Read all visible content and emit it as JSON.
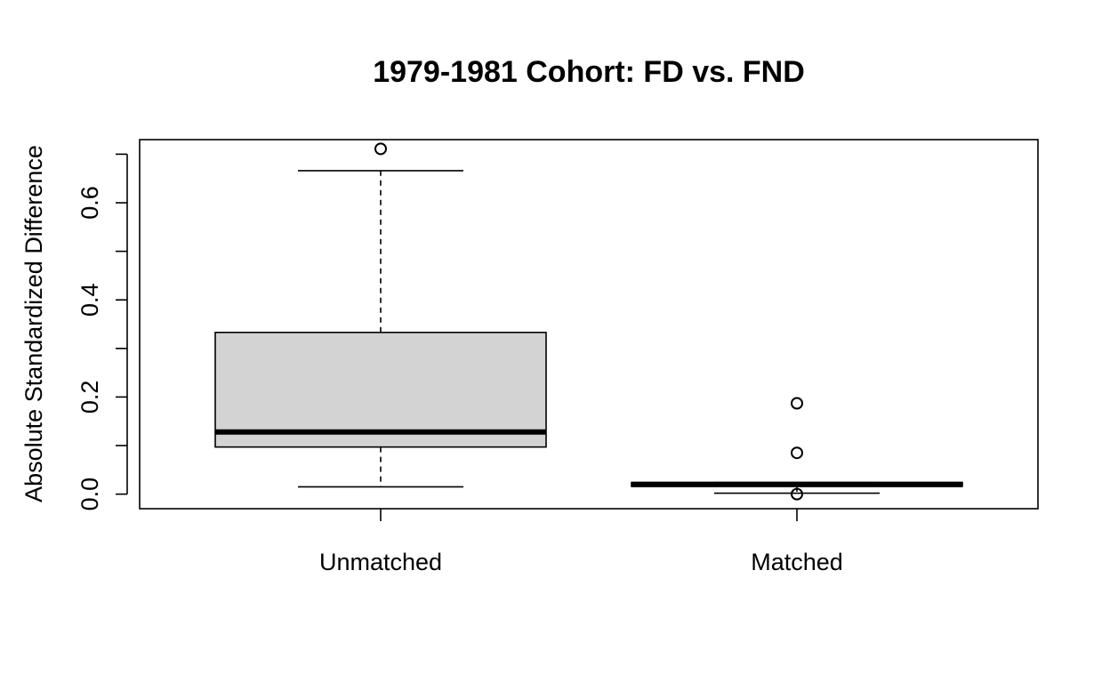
{
  "chart_data": {
    "type": "boxplot",
    "title": "1979-1981 Cohort: FD vs. FND",
    "xlabel": "",
    "ylabel": "Absolute Standardized Difference",
    "ylim": [
      -0.03,
      0.73
    ],
    "y_ticks": [
      0.0,
      0.1,
      0.2,
      0.3,
      0.4,
      0.5,
      0.6,
      0.7
    ],
    "y_tick_labels": [
      {
        "value": 0.0,
        "label": "0.0"
      },
      {
        "value": 0.2,
        "label": "0.2"
      },
      {
        "value": 0.4,
        "label": "0.4"
      },
      {
        "value": 0.6,
        "label": "0.6"
      }
    ],
    "box_fill": "#d3d3d3",
    "grid": false,
    "categories": [
      "Unmatched",
      "Matched"
    ],
    "boxes": [
      {
        "name": "Unmatched",
        "whisker_low": 0.015,
        "q1": 0.097,
        "median": 0.128,
        "q3": 0.333,
        "whisker_high": 0.666,
        "outliers": [
          0.711
        ]
      },
      {
        "name": "Matched",
        "whisker_low": 0.002,
        "q1": 0.016,
        "median": 0.02,
        "q3": 0.024,
        "whisker_high": 0.024,
        "outliers": [
          0.187,
          0.085,
          0.0
        ]
      }
    ]
  }
}
